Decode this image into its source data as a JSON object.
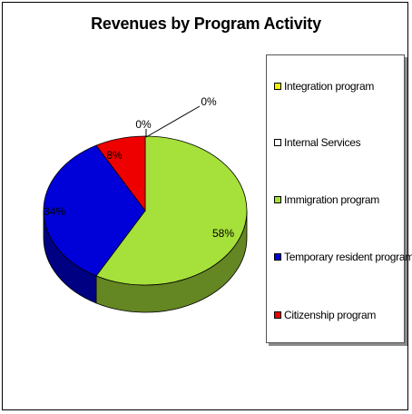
{
  "chart_data": {
    "type": "pie",
    "title": "Revenues by Program Activity",
    "slices": [
      {
        "name": "Integration program",
        "value": 0,
        "label": "0%",
        "color": "#f0f000"
      },
      {
        "name": "Internal Services",
        "value": 0,
        "label": "0%",
        "color": "#ffffff"
      },
      {
        "name": "Immigration program",
        "value": 58,
        "label": "58%",
        "color": "#a6e03a"
      },
      {
        "name": "Temporary resident program",
        "value": 34,
        "label": "34%",
        "color": "#0000d8"
      },
      {
        "name": "Citizenship program",
        "value": 8,
        "label": "8%",
        "color": "#ee0000"
      }
    ],
    "legend_position": "right",
    "three_d": true
  }
}
